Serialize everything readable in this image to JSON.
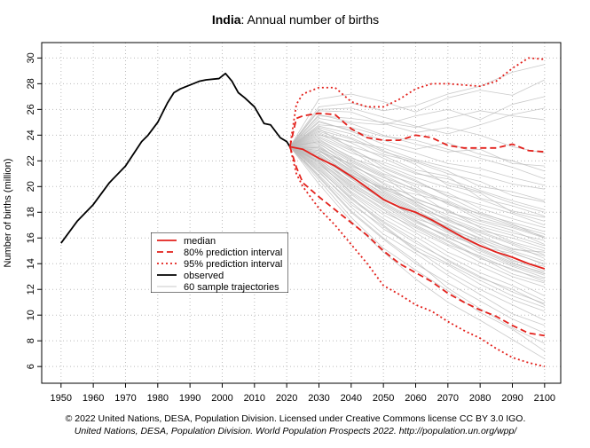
{
  "chart_data": {
    "type": "line",
    "title_country": "India",
    "title": ": Annual number of births",
    "y_label": "Number of births (million)",
    "source": "© 2022 United Nations, DESA, Population Division. Licensed under Creative Commons license CC BY 3.0 IGO.",
    "citation": "United Nations, DESA, Population Division. World Population Prospects 2022. http://population.un.org/wpp/",
    "xlim": [
      1944,
      2105
    ],
    "ylim": [
      4.7,
      31.2
    ],
    "xticks": [
      1950,
      1960,
      1970,
      1980,
      1990,
      2000,
      2010,
      2020,
      2030,
      2040,
      2050,
      2060,
      2070,
      2080,
      2090,
      2100
    ],
    "yticks": [
      6,
      8,
      10,
      12,
      14,
      16,
      18,
      20,
      22,
      24,
      26,
      28,
      30
    ],
    "grid": true,
    "series": [
      {
        "name": "median",
        "color": "#e3201b",
        "style": "solid",
        "x": [
          2021,
          2023,
          2025,
          2030,
          2035,
          2040,
          2045,
          2050,
          2055,
          2060,
          2065,
          2070,
          2075,
          2080,
          2085,
          2090,
          2095,
          2100
        ],
        "lines": [
          [
            23.1,
            23.0,
            22.9,
            22.2,
            21.6,
            20.8,
            19.9,
            19.0,
            18.4,
            18.0,
            17.4,
            16.7,
            16.0,
            15.4,
            14.9,
            14.5,
            14.0,
            13.6
          ]
        ]
      },
      {
        "name": "80% prediction interval",
        "color": "#e3201b",
        "style": "dashed",
        "x": [
          2021,
          2023,
          2025,
          2030,
          2035,
          2040,
          2045,
          2050,
          2055,
          2060,
          2065,
          2070,
          2075,
          2080,
          2085,
          2090,
          2095,
          2100
        ],
        "lines": [
          [
            23.1,
            25.3,
            25.5,
            25.7,
            25.6,
            24.5,
            23.8,
            23.6,
            23.6,
            24.0,
            23.8,
            23.2,
            23.0,
            23.0,
            23.0,
            23.3,
            22.8,
            22.7
          ],
          [
            23.1,
            21.5,
            20.3,
            19.2,
            18.2,
            17.2,
            16.2,
            15.0,
            14.0,
            13.3,
            12.6,
            11.7,
            11.0,
            10.4,
            9.9,
            9.2,
            8.6,
            8.4
          ]
        ]
      },
      {
        "name": "95% prediction interval",
        "color": "#e3201b",
        "style": "dotted",
        "x": [
          2021,
          2023,
          2025,
          2030,
          2035,
          2040,
          2045,
          2050,
          2055,
          2060,
          2065,
          2070,
          2075,
          2080,
          2085,
          2090,
          2095,
          2100
        ],
        "lines": [
          [
            23.1,
            26.4,
            27.2,
            27.7,
            27.7,
            26.6,
            26.2,
            26.2,
            26.8,
            27.6,
            28.0,
            28.0,
            27.9,
            27.8,
            28.2,
            29.2,
            30.0,
            29.9
          ],
          [
            23.1,
            21.0,
            20.0,
            18.3,
            17.0,
            15.5,
            14.0,
            12.3,
            11.6,
            10.8,
            10.3,
            9.5,
            8.8,
            8.2,
            7.4,
            6.7,
            6.3,
            6.0
          ]
        ]
      },
      {
        "name": "observed",
        "color": "#000000",
        "style": "solid",
        "x": [
          1950,
          1955,
          1960,
          1965,
          1970,
          1975,
          1977,
          1980,
          1983,
          1985,
          1987,
          1990,
          1993,
          1995,
          1999,
          2001,
          2003,
          2005,
          2007,
          2010,
          2013,
          2015,
          2018,
          2020,
          2021
        ],
        "lines": [
          [
            15.6,
            17.3,
            18.6,
            20.3,
            21.6,
            23.5,
            24.0,
            25.0,
            26.5,
            27.3,
            27.6,
            27.9,
            28.2,
            28.3,
            28.4,
            28.8,
            28.2,
            27.3,
            26.9,
            26.2,
            24.9,
            24.8,
            23.8,
            23.5,
            23.1
          ]
        ]
      },
      {
        "name": "60 sample trajectories",
        "color": "#b8b8b8",
        "style": "thin",
        "x": [
          2021,
          2030,
          2040,
          2050,
          2060,
          2070,
          2080,
          2090,
          2100
        ],
        "lines": [
          [
            23.1,
            24.5,
            23.0,
            21.5,
            20.5,
            19.2,
            18.0,
            17.1,
            16.0
          ],
          [
            23.1,
            22.0,
            20.1,
            18.5,
            17.0,
            15.8,
            14.5,
            13.2,
            12.5
          ],
          [
            23.1,
            25.6,
            25.0,
            24.8,
            25.5,
            26.0,
            25.2,
            26.4,
            27.0
          ],
          [
            23.1,
            21.5,
            19.2,
            17.0,
            15.1,
            13.4,
            12.0,
            10.8,
            9.6
          ],
          [
            23.1,
            23.8,
            22.6,
            21.9,
            21.0,
            20.6,
            19.7,
            18.9,
            18.2
          ],
          [
            23.1,
            22.8,
            21.0,
            19.4,
            18.1,
            16.5,
            15.6,
            14.2,
            13.8
          ],
          [
            23.1,
            26.2,
            26.5,
            25.9,
            26.3,
            27.2,
            27.8,
            28.9,
            29.5
          ],
          [
            23.1,
            20.8,
            18.1,
            16.0,
            14.2,
            12.1,
            10.5,
            9.0,
            7.8
          ],
          [
            23.1,
            24.0,
            23.5,
            23.0,
            22.1,
            21.5,
            20.9,
            20.2,
            19.8
          ],
          [
            23.1,
            22.5,
            20.6,
            18.9,
            17.8,
            16.9,
            15.3,
            14.8,
            14.0
          ],
          [
            23.1,
            23.2,
            21.4,
            19.6,
            18.3,
            17.5,
            16.2,
            15.1,
            14.9
          ],
          [
            23.1,
            25.0,
            24.4,
            23.6,
            22.9,
            23.4,
            22.5,
            22.0,
            21.2
          ],
          [
            23.1,
            21.9,
            19.5,
            17.8,
            16.4,
            14.9,
            13.8,
            12.7,
            11.5
          ],
          [
            23.1,
            23.5,
            22.0,
            20.8,
            19.0,
            18.2,
            16.8,
            15.7,
            15.0
          ],
          [
            23.1,
            24.7,
            24.1,
            22.8,
            21.7,
            20.1,
            19.5,
            18.0,
            17.3
          ],
          [
            23.1,
            20.5,
            17.6,
            15.2,
            13.5,
            11.9,
            10.2,
            8.9,
            7.2
          ],
          [
            23.1,
            22.2,
            20.9,
            19.9,
            19.4,
            18.8,
            17.6,
            16.9,
            16.1
          ],
          [
            23.1,
            23.9,
            22.8,
            21.2,
            20.0,
            18.6,
            17.9,
            17.2,
            16.5
          ],
          [
            23.1,
            25.9,
            25.8,
            24.9,
            24.2,
            24.6,
            24.0,
            23.1,
            22.6
          ],
          [
            23.1,
            21.2,
            18.6,
            16.9,
            15.0,
            13.9,
            12.4,
            11.2,
            10.3
          ],
          [
            23.1,
            22.7,
            21.8,
            20.2,
            18.7,
            17.3,
            16.4,
            15.5,
            14.4
          ],
          [
            23.1,
            24.2,
            23.1,
            22.4,
            21.3,
            20.8,
            19.1,
            18.5,
            17.7
          ],
          [
            23.1,
            21.7,
            19.8,
            18.2,
            16.6,
            15.4,
            14.1,
            13.0,
            12.2
          ],
          [
            23.1,
            23.4,
            21.6,
            20.5,
            19.6,
            18.0,
            17.3,
            16.6,
            15.5
          ],
          [
            23.1,
            26.8,
            27.2,
            26.6,
            25.8,
            26.9,
            27.5,
            27.1,
            28.3
          ],
          [
            23.1,
            22.4,
            20.3,
            18.8,
            17.4,
            16.0,
            15.0,
            13.9,
            13.1
          ],
          [
            23.1,
            20.9,
            18.4,
            16.3,
            14.8,
            13.1,
            11.6,
            10.1,
            9.2
          ],
          [
            23.1,
            24.4,
            23.7,
            22.5,
            21.9,
            21.0,
            20.4,
            19.3,
            18.8
          ],
          [
            23.1,
            23.0,
            21.2,
            19.7,
            18.5,
            17.0,
            16.0,
            15.2,
            14.6
          ],
          [
            23.1,
            22.1,
            20.4,
            19.1,
            17.5,
            16.7,
            15.8,
            14.5,
            13.6
          ],
          [
            23.1,
            25.3,
            24.9,
            24.0,
            23.3,
            22.7,
            22.9,
            21.8,
            21.6
          ],
          [
            23.1,
            21.4,
            19.0,
            17.2,
            15.6,
            14.3,
            13.0,
            11.8,
            10.9
          ],
          [
            23.1,
            23.6,
            22.3,
            21.0,
            20.2,
            19.5,
            18.3,
            17.5,
            16.8
          ],
          [
            23.1,
            22.9,
            21.1,
            19.8,
            18.9,
            17.6,
            16.6,
            16.0,
            15.2
          ],
          [
            23.1,
            20.2,
            17.3,
            14.9,
            12.8,
            11.0,
            9.6,
            8.1,
            6.6
          ],
          [
            23.1,
            24.8,
            24.6,
            23.9,
            23.6,
            22.9,
            22.2,
            21.5,
            20.6
          ],
          [
            23.1,
            22.3,
            20.7,
            19.2,
            17.9,
            16.6,
            15.1,
            14.0,
            13.3
          ],
          [
            23.1,
            23.3,
            21.9,
            20.7,
            19.8,
            18.9,
            17.8,
            17.0,
            16.3
          ],
          [
            23.1,
            21.8,
            19.6,
            18.0,
            16.8,
            15.5,
            14.6,
            13.5,
            12.8
          ],
          [
            23.1,
            25.5,
            25.3,
            25.0,
            24.6,
            25.3,
            25.9,
            25.5,
            25.2
          ],
          [
            23.1,
            22.6,
            20.8,
            19.3,
            18.0,
            17.1,
            15.9,
            15.0,
            14.2
          ],
          [
            23.1,
            24.1,
            22.9,
            21.7,
            20.7,
            19.9,
            19.0,
            18.1,
            17.6
          ],
          [
            23.1,
            21.1,
            18.8,
            16.7,
            15.3,
            14.0,
            12.7,
            11.5,
            10.6
          ],
          [
            23.1,
            23.7,
            22.2,
            21.4,
            20.4,
            19.3,
            18.6,
            17.9,
            17.0
          ],
          [
            23.1,
            22.0,
            20.0,
            18.6,
            17.2,
            16.2,
            15.4,
            14.3,
            13.4
          ],
          [
            23.1,
            26.0,
            26.1,
            25.4,
            24.7,
            24.1,
            24.8,
            25.6,
            26.1
          ],
          [
            23.1,
            21.6,
            19.4,
            17.5,
            16.1,
            14.6,
            13.3,
            12.3,
            11.1
          ],
          [
            23.1,
            23.1,
            21.5,
            20.0,
            18.8,
            17.8,
            16.9,
            16.2,
            15.4
          ],
          [
            23.1,
            22.4,
            20.6,
            19.0,
            17.7,
            16.4,
            15.2,
            14.1,
            13.2
          ],
          [
            23.1,
            24.6,
            23.8,
            22.7,
            22.0,
            21.2,
            20.0,
            19.6,
            18.9
          ],
          [
            23.1,
            20.7,
            18.0,
            15.9,
            14.0,
            12.5,
            11.1,
            9.7,
            8.6
          ],
          [
            23.1,
            22.8,
            21.3,
            19.9,
            18.6,
            17.4,
            16.5,
            15.6,
            14.7
          ],
          [
            23.1,
            23.5,
            22.1,
            20.9,
            19.7,
            18.7,
            17.4,
            16.8,
            16.0
          ],
          [
            23.1,
            25.1,
            24.3,
            23.3,
            22.6,
            21.8,
            21.4,
            20.7,
            20.1
          ],
          [
            23.1,
            21.9,
            19.9,
            18.3,
            16.9,
            15.7,
            14.4,
            13.6,
            12.6
          ],
          [
            23.1,
            22.6,
            20.9,
            19.5,
            18.2,
            16.8,
            15.7,
            14.9,
            13.9
          ],
          [
            23.1,
            24.3,
            23.4,
            22.2,
            21.1,
            20.3,
            19.6,
            18.7,
            18.0
          ],
          [
            23.1,
            21.3,
            19.1,
            17.3,
            15.8,
            14.2,
            12.9,
            12.0,
            10.8
          ],
          [
            23.1,
            23.0,
            21.7,
            20.3,
            19.1,
            18.1,
            17.1,
            16.4,
            15.8
          ],
          [
            23.1,
            22.2,
            20.2,
            18.7,
            17.3,
            16.1,
            14.8,
            13.8,
            12.9
          ]
        ]
      }
    ]
  }
}
